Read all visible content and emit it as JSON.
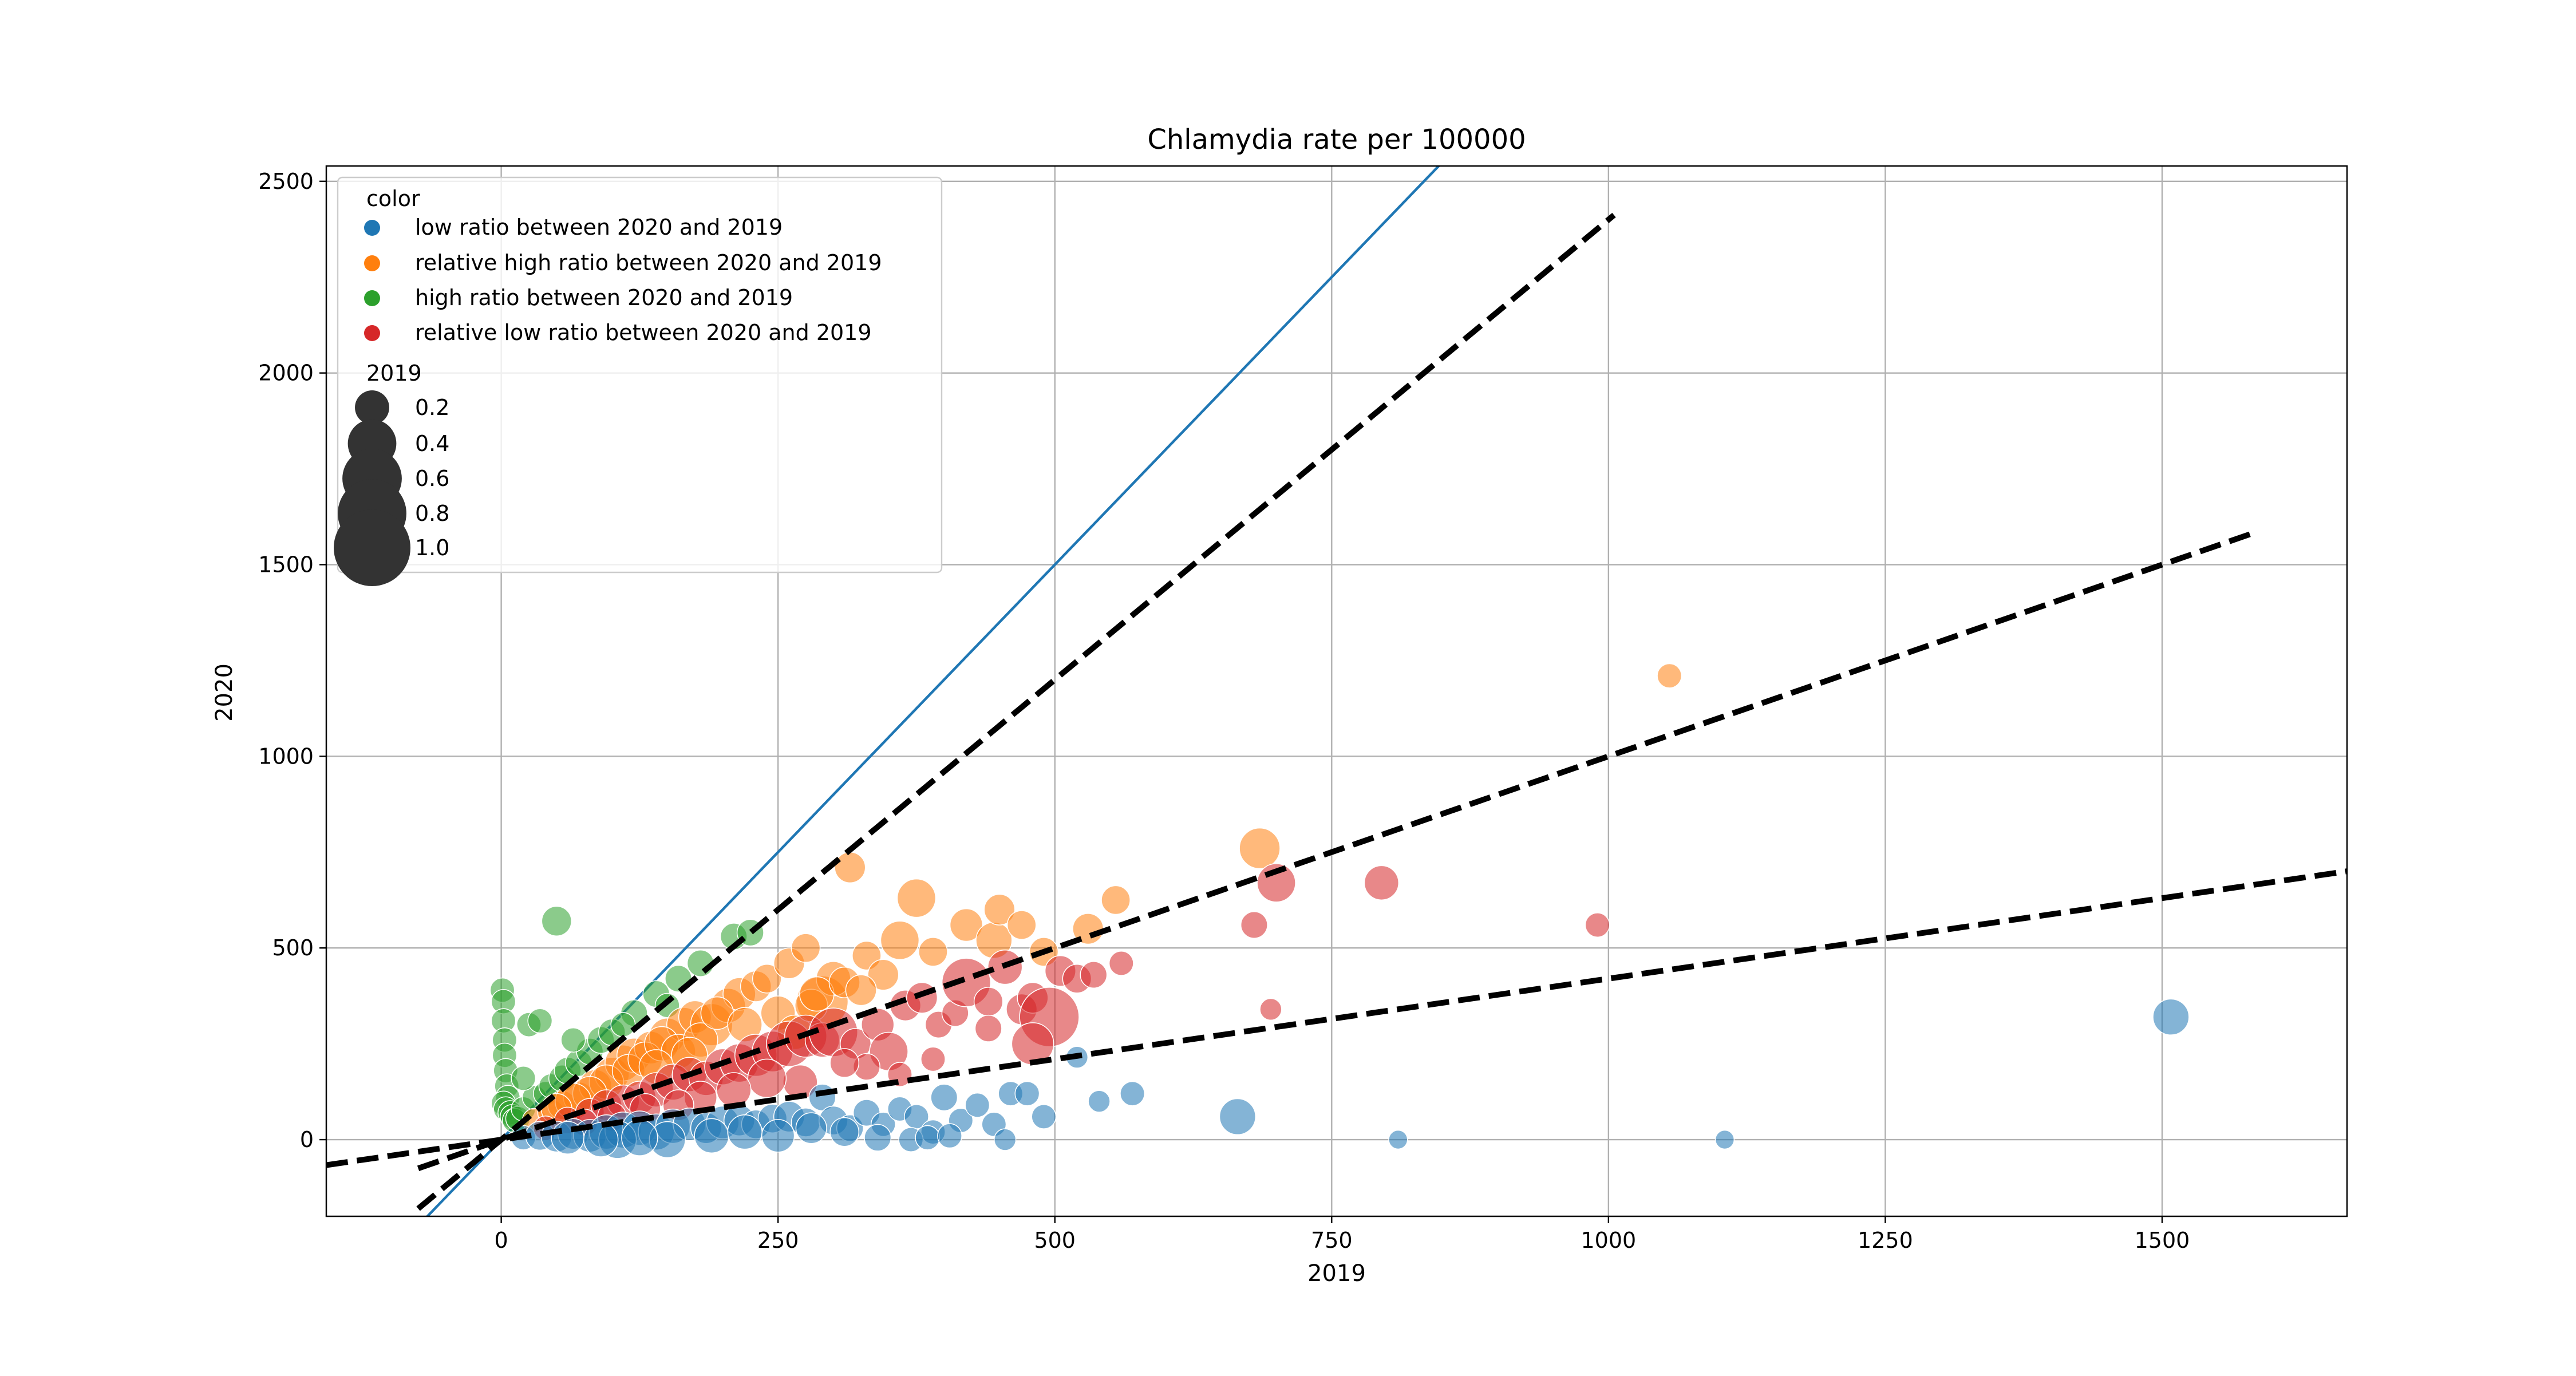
{
  "chart_data": {
    "type": "scatter",
    "title": "Chlamydia rate per 100000",
    "xlabel": "2019",
    "ylabel": "2020",
    "xlim": [
      -158,
      1667
    ],
    "ylim": [
      -200,
      2540
    ],
    "xticks": [
      0,
      250,
      500,
      750,
      1000,
      1250,
      1500
    ],
    "yticks": [
      0,
      500,
      1000,
      1500,
      2000,
      2500
    ],
    "grid": true,
    "legend": {
      "placement": "top-left",
      "color_title": "color",
      "size_title": "2019",
      "entries": [
        {
          "label": "low ratio between 2020 and 2019",
          "color": "#1f77b4"
        },
        {
          "label": "relative high ratio between 2020 and 2019",
          "color": "#ff7f0e"
        },
        {
          "label": "high ratio between 2020 and 2019",
          "color": "#2ca02c"
        },
        {
          "label": "relative low ratio between 2020 and 2019",
          "color": "#d62728"
        }
      ],
      "sizes": [
        {
          "label": "0.2",
          "value": 0.2
        },
        {
          "label": "0.4",
          "value": 0.4
        },
        {
          "label": "0.6",
          "value": 0.6
        },
        {
          "label": "0.8",
          "value": 0.8
        },
        {
          "label": "1.0",
          "value": 1.0
        }
      ],
      "size_marker_color": "#333333"
    },
    "lines": [
      {
        "kind": "identity-ratio",
        "slope": 3.0,
        "x_range": [
          -75,
          1667
        ],
        "color": "#1f77b4",
        "style": "solid"
      },
      {
        "kind": "reference",
        "slope": 2.4,
        "x_range": [
          -75,
          1005
        ],
        "color": "#000000",
        "style": "dashed"
      },
      {
        "kind": "reference",
        "slope": 1.0,
        "x_range": [
          -75,
          1580
        ],
        "color": "#000000",
        "style": "dashed"
      },
      {
        "kind": "reference",
        "slope": 0.42,
        "x_range": [
          -158,
          1667
        ],
        "color": "#000000",
        "style": "dashed"
      }
    ],
    "series": [
      {
        "name": "high ratio between 2020 and 2019",
        "color": "#2ca02c",
        "points": [
          [
            1,
            390
          ],
          [
            2,
            360
          ],
          [
            2,
            310
          ],
          [
            3,
            260
          ],
          [
            3,
            220
          ],
          [
            4,
            180
          ],
          [
            5,
            140
          ],
          [
            6,
            110
          ],
          [
            2,
            95
          ],
          [
            4,
            80
          ],
          [
            8,
            70
          ],
          [
            10,
            60
          ],
          [
            12,
            50
          ],
          [
            15,
            55
          ],
          [
            20,
            80
          ],
          [
            25,
            300
          ],
          [
            35,
            310
          ],
          [
            50,
            570
          ],
          [
            30,
            110
          ],
          [
            40,
            120
          ],
          [
            45,
            140
          ],
          [
            55,
            160
          ],
          [
            60,
            180
          ],
          [
            70,
            200
          ],
          [
            80,
            230
          ],
          [
            90,
            260
          ],
          [
            100,
            280
          ],
          [
            120,
            330
          ],
          [
            140,
            380
          ],
          [
            160,
            420
          ],
          [
            180,
            460
          ],
          [
            210,
            530
          ],
          [
            225,
            540
          ],
          [
            65,
            260
          ],
          [
            110,
            300
          ],
          [
            150,
            350
          ],
          [
            20,
            160
          ]
        ],
        "sizes": [
          0.1,
          0.1,
          0.1,
          0.1,
          0.1,
          0.1,
          0.1,
          0.1,
          0.1,
          0.1,
          0.1,
          0.1,
          0.1,
          0.1,
          0.1,
          0.1,
          0.1,
          0.15,
          0.1,
          0.1,
          0.1,
          0.12,
          0.12,
          0.12,
          0.12,
          0.12,
          0.12,
          0.12,
          0.12,
          0.12,
          0.12,
          0.12,
          0.12,
          0.1,
          0.1,
          0.1,
          0.1
        ]
      },
      {
        "name": "relative high ratio between 2020 and 2019",
        "color": "#ff7f0e",
        "points": [
          [
            30,
            50
          ],
          [
            45,
            70
          ],
          [
            55,
            90
          ],
          [
            70,
            110
          ],
          [
            85,
            140
          ],
          [
            100,
            170
          ],
          [
            110,
            200
          ],
          [
            120,
            220
          ],
          [
            135,
            240
          ],
          [
            150,
            270
          ],
          [
            165,
            300
          ],
          [
            175,
            320
          ],
          [
            190,
            300
          ],
          [
            205,
            350
          ],
          [
            215,
            380
          ],
          [
            230,
            400
          ],
          [
            240,
            420
          ],
          [
            260,
            460
          ],
          [
            275,
            500
          ],
          [
            290,
            360
          ],
          [
            300,
            420
          ],
          [
            315,
            710
          ],
          [
            330,
            480
          ],
          [
            345,
            430
          ],
          [
            360,
            520
          ],
          [
            375,
            630
          ],
          [
            390,
            490
          ],
          [
            420,
            560
          ],
          [
            445,
            520
          ],
          [
            450,
            600
          ],
          [
            470,
            560
          ],
          [
            490,
            490
          ],
          [
            530,
            550
          ],
          [
            555,
            625
          ],
          [
            685,
            760
          ],
          [
            1055,
            1210
          ],
          [
            95,
            150
          ],
          [
            115,
            180
          ],
          [
            130,
            210
          ],
          [
            145,
            250
          ],
          [
            160,
            230
          ],
          [
            180,
            260
          ],
          [
            195,
            330
          ],
          [
            220,
            300
          ],
          [
            250,
            330
          ],
          [
            265,
            280
          ],
          [
            280,
            350
          ],
          [
            285,
            380
          ],
          [
            310,
            410
          ],
          [
            325,
            390
          ],
          [
            80,
            120
          ],
          [
            65,
            100
          ],
          [
            50,
            80
          ],
          [
            140,
            190
          ],
          [
            170,
            220
          ]
        ],
        "sizes": [
          0.1,
          0.12,
          0.14,
          0.16,
          0.18,
          0.2,
          0.22,
          0.2,
          0.18,
          0.22,
          0.2,
          0.18,
          0.3,
          0.2,
          0.18,
          0.16,
          0.14,
          0.16,
          0.14,
          0.45,
          0.2,
          0.16,
          0.14,
          0.16,
          0.25,
          0.25,
          0.14,
          0.18,
          0.22,
          0.16,
          0.14,
          0.14,
          0.16,
          0.14,
          0.28,
          0.1,
          0.2,
          0.18,
          0.2,
          0.2,
          0.2,
          0.2,
          0.18,
          0.2,
          0.2,
          0.2,
          0.18,
          0.2,
          0.16,
          0.16,
          0.2,
          0.22,
          0.16,
          0.2,
          0.22
        ]
      },
      {
        "name": "relative low ratio between 2020 and 2019",
        "color": "#d62728",
        "points": [
          [
            40,
            30
          ],
          [
            60,
            50
          ],
          [
            80,
            70
          ],
          [
            95,
            90
          ],
          [
            110,
            100
          ],
          [
            125,
            110
          ],
          [
            140,
            130
          ],
          [
            155,
            150
          ],
          [
            170,
            170
          ],
          [
            185,
            160
          ],
          [
            200,
            190
          ],
          [
            215,
            200
          ],
          [
            230,
            220
          ],
          [
            245,
            230
          ],
          [
            260,
            250
          ],
          [
            275,
            270
          ],
          [
            290,
            260
          ],
          [
            300,
            280
          ],
          [
            320,
            250
          ],
          [
            340,
            300
          ],
          [
            350,
            230
          ],
          [
            365,
            350
          ],
          [
            380,
            370
          ],
          [
            395,
            300
          ],
          [
            410,
            330
          ],
          [
            420,
            410
          ],
          [
            440,
            360
          ],
          [
            455,
            450
          ],
          [
            470,
            340
          ],
          [
            480,
            370
          ],
          [
            495,
            320
          ],
          [
            505,
            440
          ],
          [
            520,
            420
          ],
          [
            535,
            430
          ],
          [
            560,
            460
          ],
          [
            680,
            560
          ],
          [
            700,
            670
          ],
          [
            795,
            670
          ],
          [
            990,
            560
          ],
          [
            695,
            340
          ],
          [
            480,
            250
          ],
          [
            440,
            290
          ],
          [
            390,
            210
          ],
          [
            360,
            170
          ],
          [
            330,
            190
          ],
          [
            310,
            200
          ],
          [
            270,
            150
          ],
          [
            240,
            160
          ],
          [
            210,
            130
          ],
          [
            180,
            110
          ],
          [
            160,
            90
          ],
          [
            130,
            80
          ],
          [
            100,
            60
          ],
          [
            75,
            45
          ]
        ],
        "sizes": [
          0.1,
          0.12,
          0.14,
          0.16,
          0.18,
          0.18,
          0.2,
          0.22,
          0.2,
          0.2,
          0.22,
          0.25,
          0.3,
          0.28,
          0.35,
          0.3,
          0.2,
          0.4,
          0.16,
          0.18,
          0.25,
          0.16,
          0.16,
          0.12,
          0.12,
          0.4,
          0.14,
          0.2,
          0.16,
          0.16,
          0.6,
          0.16,
          0.14,
          0.12,
          0.1,
          0.12,
          0.25,
          0.2,
          0.1,
          0.08,
          0.3,
          0.12,
          0.1,
          0.1,
          0.12,
          0.14,
          0.2,
          0.25,
          0.2,
          0.18,
          0.16,
          0.16,
          0.14,
          0.12
        ]
      },
      {
        "name": "low ratio between 2020 and 2019",
        "color": "#1f77b4",
        "points": [
          [
            20,
            5
          ],
          [
            35,
            10
          ],
          [
            50,
            8
          ],
          [
            65,
            15
          ],
          [
            80,
            10
          ],
          [
            95,
            20
          ],
          [
            110,
            25
          ],
          [
            125,
            30
          ],
          [
            140,
            20
          ],
          [
            155,
            35
          ],
          [
            170,
            40
          ],
          [
            185,
            30
          ],
          [
            200,
            45
          ],
          [
            215,
            50
          ],
          [
            230,
            40
          ],
          [
            245,
            55
          ],
          [
            260,
            60
          ],
          [
            275,
            45
          ],
          [
            290,
            110
          ],
          [
            300,
            50
          ],
          [
            315,
            30
          ],
          [
            330,
            70
          ],
          [
            345,
            40
          ],
          [
            360,
            80
          ],
          [
            375,
            60
          ],
          [
            390,
            20
          ],
          [
            400,
            110
          ],
          [
            415,
            50
          ],
          [
            430,
            90
          ],
          [
            445,
            40
          ],
          [
            460,
            120
          ],
          [
            475,
            120
          ],
          [
            490,
            60
          ],
          [
            520,
            215
          ],
          [
            540,
            100
          ],
          [
            570,
            120
          ],
          [
            665,
            60
          ],
          [
            810,
            0
          ],
          [
            1105,
            0
          ],
          [
            1508,
            320
          ],
          [
            105,
            0
          ],
          [
            150,
            0
          ],
          [
            190,
            10
          ],
          [
            220,
            20
          ],
          [
            250,
            10
          ],
          [
            280,
            30
          ],
          [
            310,
            20
          ],
          [
            340,
            5
          ],
          [
            370,
            0
          ],
          [
            385,
            5
          ],
          [
            405,
            10
          ],
          [
            455,
            0
          ],
          [
            60,
            5
          ],
          [
            90,
            0
          ],
          [
            125,
            5
          ]
        ],
        "sizes": [
          0.1,
          0.14,
          0.16,
          0.16,
          0.18,
          0.2,
          0.22,
          0.2,
          0.22,
          0.2,
          0.18,
          0.16,
          0.18,
          0.16,
          0.14,
          0.14,
          0.16,
          0.14,
          0.12,
          0.14,
          0.12,
          0.12,
          0.1,
          0.1,
          0.1,
          0.1,
          0.12,
          0.1,
          0.1,
          0.1,
          0.1,
          0.1,
          0.1,
          0.08,
          0.08,
          0.1,
          0.22,
          0.06,
          0.06,
          0.22,
          0.24,
          0.22,
          0.2,
          0.2,
          0.18,
          0.16,
          0.14,
          0.12,
          0.1,
          0.1,
          0.1,
          0.08,
          0.18,
          0.2,
          0.22
        ]
      }
    ]
  }
}
